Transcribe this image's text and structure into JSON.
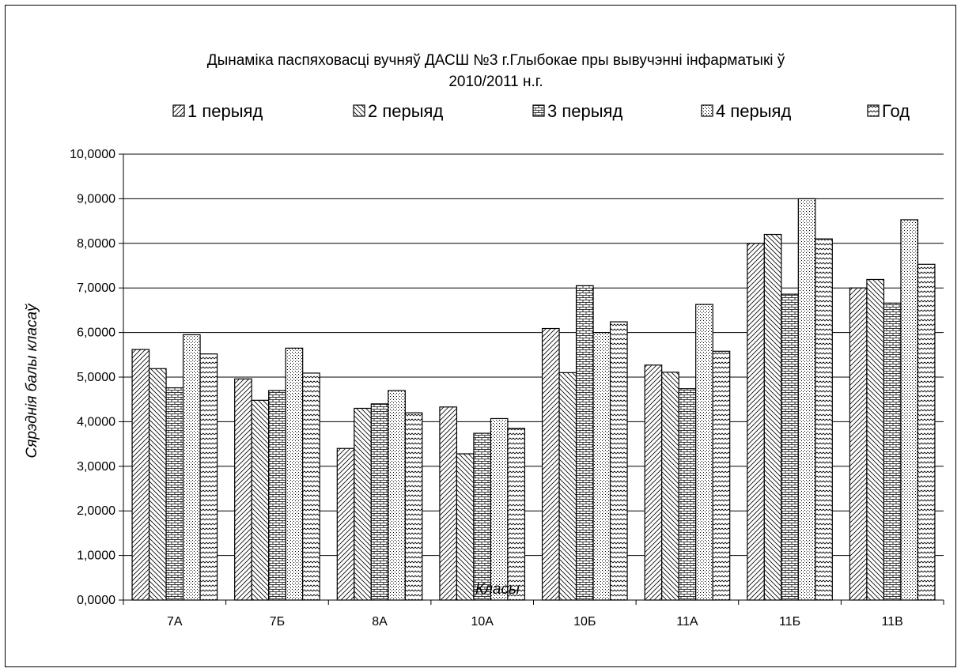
{
  "chart_data": {
    "type": "bar",
    "title_line1": "Дынаміка паспяховасці вучняў ДАСШ №3 г.Глыбокае пры вывучэнні інфарматыкі ў",
    "title_line2": "2010/2011 н.г.",
    "xlabel": "Класы",
    "ylabel": "Сярэднія балы класаў",
    "ylim": [
      0,
      10
    ],
    "yticks": [
      "0,0000",
      "1,0000",
      "2,0000",
      "3,0000",
      "4,0000",
      "5,0000",
      "6,0000",
      "7,0000",
      "8,0000",
      "9,0000",
      "10,0000"
    ],
    "grid": "horizontal",
    "legend_position": "top",
    "categories": [
      "7А",
      "7Б",
      "8А",
      "10А",
      "10Б",
      "11А",
      "11Б",
      "11В"
    ],
    "series": [
      {
        "name": "1 перыяд",
        "values": [
          5.62,
          4.96,
          3.4,
          4.33,
          6.09,
          5.27,
          8.0,
          7.0
        ]
      },
      {
        "name": "2 перыяд",
        "values": [
          5.19,
          4.48,
          4.3,
          3.28,
          5.1,
          5.11,
          8.2,
          7.19
        ]
      },
      {
        "name": "3 перыяд",
        "values": [
          4.76,
          4.7,
          4.4,
          3.74,
          7.05,
          4.74,
          6.86,
          6.66
        ]
      },
      {
        "name": "4 перыяд",
        "values": [
          5.95,
          5.65,
          4.7,
          4.07,
          6.0,
          6.63,
          9.0,
          8.53
        ]
      },
      {
        "name": "Год",
        "values": [
          5.52,
          5.09,
          4.2,
          3.85,
          6.24,
          5.58,
          8.1,
          7.53
        ]
      }
    ]
  }
}
